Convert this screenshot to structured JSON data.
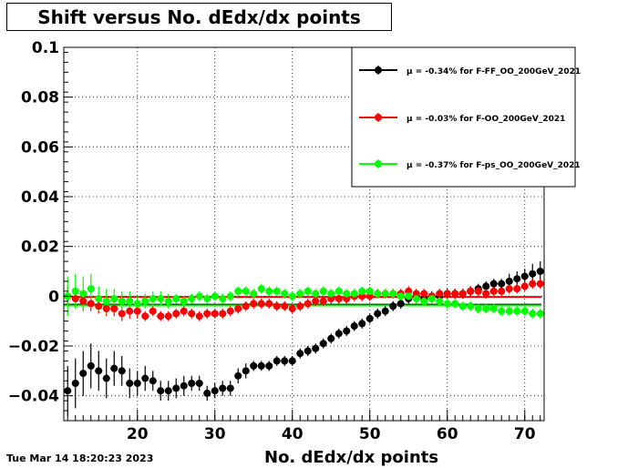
{
  "title": "Shift versus No. dEdx/dx points",
  "timestamp": "Tue Mar 14 18:20:23 2023",
  "chart_data": {
    "type": "scatter",
    "title": "Shift versus No. dEdx/dx points",
    "xlabel": "No. dEdx/dx points",
    "ylabel": "",
    "xlim": [
      10.5,
      72.5
    ],
    "ylim": [
      -0.05,
      0.1
    ],
    "xticks": [
      20,
      30,
      40,
      50,
      60,
      70
    ],
    "yticks": [
      -0.04,
      -0.02,
      0,
      0.02,
      0.04,
      0.06,
      0.08,
      0.1
    ],
    "ytick_labels": [
      "−0.04",
      "−0.02",
      "0",
      "0.02",
      "0.04",
      "0.06",
      "0.08",
      "0.1"
    ],
    "grid": true,
    "legend_position": "top-right",
    "series": [
      {
        "name": "μ = -0.34% for F-FF_OO_200GeV_2021",
        "color": "#000000",
        "mean": -0.0034,
        "x": [
          11,
          12,
          13,
          14,
          15,
          16,
          17,
          18,
          19,
          20,
          21,
          22,
          23,
          24,
          25,
          26,
          27,
          28,
          29,
          30,
          31,
          32,
          33,
          34,
          35,
          36,
          37,
          38,
          39,
          40,
          41,
          42,
          43,
          44,
          45,
          46,
          47,
          48,
          49,
          50,
          51,
          52,
          53,
          54,
          55,
          56,
          57,
          58,
          59,
          60,
          61,
          62,
          63,
          64,
          65,
          66,
          67,
          68,
          69,
          70,
          71,
          72
        ],
        "y": [
          -0.038,
          -0.035,
          -0.031,
          -0.028,
          -0.03,
          -0.033,
          -0.029,
          -0.03,
          -0.035,
          -0.035,
          -0.033,
          -0.034,
          -0.038,
          -0.038,
          -0.037,
          -0.036,
          -0.035,
          -0.035,
          -0.039,
          -0.038,
          -0.037,
          -0.037,
          -0.032,
          -0.03,
          -0.028,
          -0.028,
          -0.028,
          -0.026,
          -0.026,
          -0.026,
          -0.023,
          -0.022,
          -0.021,
          -0.019,
          -0.017,
          -0.015,
          -0.014,
          -0.012,
          -0.011,
          -0.009,
          -0.007,
          -0.006,
          -0.004,
          -0.003,
          -0.001,
          0.0,
          -0.001,
          0.0,
          0.0,
          0.001,
          0.001,
          0.001,
          0.002,
          0.003,
          0.004,
          0.005,
          0.005,
          0.006,
          0.007,
          0.008,
          0.009,
          0.01
        ],
        "err": [
          0.01,
          0.01,
          0.009,
          0.009,
          0.008,
          0.008,
          0.007,
          0.006,
          0.006,
          0.005,
          0.005,
          0.004,
          0.004,
          0.004,
          0.004,
          0.004,
          0.003,
          0.003,
          0.003,
          0.003,
          0.003,
          0.003,
          0.003,
          0.003,
          0.002,
          0.002,
          0.002,
          0.002,
          0.002,
          0.002,
          0.002,
          0.002,
          0.002,
          0.002,
          0.002,
          0.002,
          0.002,
          0.002,
          0.002,
          0.002,
          0.002,
          0.002,
          0.002,
          0.002,
          0.002,
          0.002,
          0.002,
          0.002,
          0.002,
          0.002,
          0.002,
          0.002,
          0.002,
          0.002,
          0.002,
          0.002,
          0.002,
          0.003,
          0.003,
          0.003,
          0.004,
          0.004
        ]
      },
      {
        "name": "μ = -0.03% for F-OO_200GeV_2021",
        "color": "#ff0000",
        "mean": -0.0003,
        "x": [
          11,
          12,
          13,
          14,
          15,
          16,
          17,
          18,
          19,
          20,
          21,
          22,
          23,
          24,
          25,
          26,
          27,
          28,
          29,
          30,
          31,
          32,
          33,
          34,
          35,
          36,
          37,
          38,
          39,
          40,
          41,
          42,
          43,
          44,
          45,
          46,
          47,
          48,
          49,
          50,
          51,
          52,
          53,
          54,
          55,
          56,
          57,
          58,
          59,
          60,
          61,
          62,
          63,
          64,
          65,
          66,
          67,
          68,
          69,
          70,
          71,
          72
        ],
        "y": [
          0.0,
          -0.001,
          -0.002,
          -0.003,
          -0.004,
          -0.005,
          -0.005,
          -0.007,
          -0.006,
          -0.006,
          -0.008,
          -0.006,
          -0.008,
          -0.008,
          -0.007,
          -0.006,
          -0.007,
          -0.008,
          -0.007,
          -0.007,
          -0.007,
          -0.006,
          -0.005,
          -0.004,
          -0.003,
          -0.003,
          -0.003,
          -0.004,
          -0.004,
          -0.005,
          -0.004,
          -0.003,
          -0.002,
          -0.002,
          -0.001,
          -0.001,
          -0.001,
          0.0,
          0.0,
          0.0,
          0.001,
          0.001,
          0.001,
          0.001,
          0.002,
          0.001,
          0.001,
          0.0,
          0.001,
          0.001,
          0.001,
          0.001,
          0.002,
          0.002,
          0.001,
          0.002,
          0.002,
          0.003,
          0.003,
          0.004,
          0.005,
          0.005
        ],
        "err": [
          0.004,
          0.004,
          0.004,
          0.003,
          0.003,
          0.003,
          0.003,
          0.003,
          0.003,
          0.003,
          0.002,
          0.002,
          0.002,
          0.002,
          0.002,
          0.002,
          0.002,
          0.002,
          0.002,
          0.002,
          0.002,
          0.002,
          0.002,
          0.002,
          0.002,
          0.002,
          0.002,
          0.002,
          0.002,
          0.002,
          0.002,
          0.002,
          0.002,
          0.002,
          0.002,
          0.002,
          0.002,
          0.002,
          0.002,
          0.002,
          0.002,
          0.002,
          0.002,
          0.002,
          0.002,
          0.002,
          0.002,
          0.002,
          0.002,
          0.002,
          0.002,
          0.002,
          0.002,
          0.002,
          0.002,
          0.002,
          0.002,
          0.002,
          0.002,
          0.002,
          0.002,
          0.002
        ]
      },
      {
        "name": "μ = -0.37% for F-ps_OO_200GeV_2021",
        "color": "#00ff00",
        "mean": -0.0037,
        "x": [
          11,
          12,
          13,
          14,
          15,
          16,
          17,
          18,
          19,
          20,
          21,
          22,
          23,
          24,
          25,
          26,
          27,
          28,
          29,
          30,
          31,
          32,
          33,
          34,
          35,
          36,
          37,
          38,
          39,
          40,
          41,
          42,
          43,
          44,
          45,
          46,
          47,
          48,
          49,
          50,
          51,
          52,
          53,
          54,
          55,
          56,
          57,
          58,
          59,
          60,
          61,
          62,
          63,
          64,
          65,
          66,
          67,
          68,
          69,
          70,
          71,
          72
        ],
        "y": [
          0.0,
          0.002,
          0.001,
          0.003,
          -0.001,
          -0.002,
          -0.001,
          -0.002,
          -0.002,
          -0.003,
          -0.002,
          -0.001,
          -0.001,
          -0.002,
          -0.001,
          -0.002,
          -0.001,
          0.0,
          -0.001,
          0.0,
          -0.001,
          0.0,
          0.002,
          0.002,
          0.001,
          0.003,
          0.002,
          0.002,
          0.001,
          0.0,
          0.001,
          0.002,
          0.001,
          0.002,
          0.001,
          0.002,
          0.001,
          0.001,
          0.002,
          0.002,
          0.001,
          0.001,
          0.001,
          0.0,
          0.0,
          -0.001,
          -0.002,
          -0.001,
          -0.002,
          -0.003,
          -0.003,
          -0.004,
          -0.004,
          -0.005,
          -0.005,
          -0.005,
          -0.006,
          -0.006,
          -0.006,
          -0.006,
          -0.007,
          -0.007
        ],
        "err": [
          0.008,
          0.007,
          0.007,
          0.006,
          0.005,
          0.005,
          0.004,
          0.004,
          0.004,
          0.003,
          0.003,
          0.003,
          0.003,
          0.003,
          0.002,
          0.002,
          0.002,
          0.002,
          0.002,
          0.002,
          0.002,
          0.002,
          0.002,
          0.002,
          0.002,
          0.002,
          0.002,
          0.002,
          0.002,
          0.002,
          0.002,
          0.002,
          0.002,
          0.002,
          0.002,
          0.002,
          0.002,
          0.002,
          0.002,
          0.002,
          0.002,
          0.002,
          0.002,
          0.002,
          0.002,
          0.002,
          0.002,
          0.002,
          0.002,
          0.002,
          0.002,
          0.002,
          0.002,
          0.002,
          0.002,
          0.002,
          0.002,
          0.002,
          0.002,
          0.002,
          0.002,
          0.002
        ]
      }
    ]
  }
}
